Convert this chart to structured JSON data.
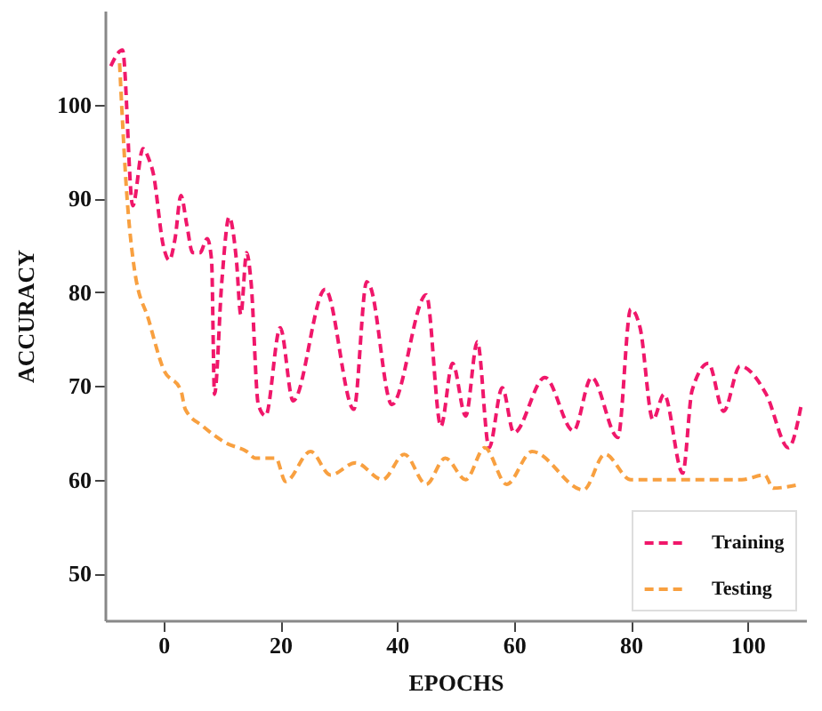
{
  "chart_data": {
    "type": "line",
    "xlabel": "EPOCHS",
    "ylabel": "ACCURACY",
    "xlim": [
      -10,
      110
    ],
    "ylim": [
      45,
      110
    ],
    "xticks": [
      0,
      20,
      40,
      60,
      80,
      100
    ],
    "yticks": [
      50,
      60,
      70,
      80,
      90,
      100
    ],
    "grid": false,
    "legend": "bottom right",
    "marker": "none",
    "line_style": "dashed",
    "series": [
      {
        "name": "Training",
        "color": "#f0176a",
        "x": [
          -9,
          -7,
          -5.25,
          -3.5,
          -2.5,
          -1.75,
          0,
          1,
          2,
          3,
          4,
          5,
          6.25,
          7.5,
          8.25,
          8.75,
          10,
          11.25,
          12.5,
          13.25,
          14.25,
          15,
          16.25,
          17.5,
          20,
          22.2,
          27.7,
          32.6,
          34.8,
          35.4,
          39.1,
          45,
          47.5,
          49.5,
          51.75,
          53.75,
          55.75,
          58,
          60,
          65.3,
          70.2,
          73.3,
          77.8,
          80,
          81.6,
          83.8,
          85.7,
          88.9,
          90.5,
          93.3,
          95.9,
          98.7,
          103.2,
          107,
          109.2
        ],
        "values": [
          104.1,
          105.8,
          89.2,
          95.3,
          94.2,
          92.7,
          84.9,
          83.4,
          85.7,
          90.3,
          87.2,
          84.2,
          84.2,
          85.7,
          83.4,
          69.1,
          81.1,
          88,
          83.4,
          77.6,
          84.2,
          81.1,
          68,
          66.8,
          76.2,
          68.4,
          80.3,
          67.5,
          81.1,
          80.6,
          68,
          79.7,
          65.7,
          72.4,
          66.8,
          74.7,
          63.4,
          69.8,
          65,
          70.9,
          65.2,
          70.9,
          64.5,
          78.2,
          76.2,
          66.4,
          69.1,
          60.7,
          69.5,
          72.4,
          67.3,
          72.1,
          69.1,
          63.4,
          68
        ]
      },
      {
        "name": "Testing",
        "color": "#f8a040",
        "x": [
          -7.5,
          -6.25,
          -5,
          -2.5,
          0,
          3,
          3.75,
          6.75,
          10.75,
          14.25,
          15.75,
          19.25,
          20.9,
          25.2,
          28.6,
          32.9,
          37.5,
          41.25,
          45,
          48.25,
          51.75,
          55,
          58.75,
          63.1,
          71.9,
          75.6,
          80,
          88.4,
          99,
          102.9,
          104.4,
          109
        ],
        "values": [
          104.4,
          90.3,
          82.6,
          77,
          71.8,
          69.5,
          67.5,
          65.7,
          63.9,
          63,
          62.3,
          62.3,
          59.8,
          63,
          60.5,
          61.8,
          60,
          62.7,
          59.5,
          62.3,
          60,
          63.4,
          59.5,
          63,
          58.9,
          62.7,
          60,
          60,
          60,
          60.5,
          59.1,
          59.5
        ]
      }
    ]
  }
}
